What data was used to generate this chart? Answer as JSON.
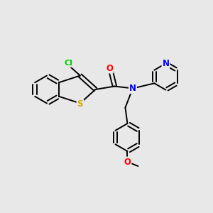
{
  "background_color": "#e8e8e8",
  "bond_color": "#000000",
  "atom_colors": {
    "Cl": "#00cc00",
    "S": "#ccaa00",
    "O": "#ff0000",
    "N": "#0000ff",
    "C": "#000000"
  },
  "lw": 1.4
}
